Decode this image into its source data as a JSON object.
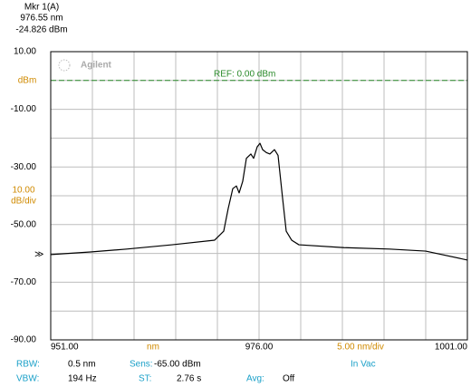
{
  "marker": {
    "name": "Mkr 1(A)",
    "x_label": "976.55 nm",
    "y_label": "-24.826 dBm"
  },
  "chart_data": {
    "type": "line",
    "brand": "Agilent",
    "y_unit": "dBm",
    "y_scale": [
      "10.00",
      "dB/div"
    ],
    "x_unit": "nm",
    "x_scale": "5.00 nm/div",
    "ref_label": "REF: 0.00 dBm",
    "ref_level": 0,
    "ref_color": "#2a8a2a",
    "x": [
      951,
      955.78,
      960.13,
      965.57,
      970.67,
      971.76,
      972.3,
      972.85,
      973.28,
      973.61,
      974.04,
      974.48,
      975.02,
      975.35,
      975.78,
      976.11,
      976.43,
      976.87,
      977.3,
      977.85,
      978.28,
      978.83,
      979.26,
      979.91,
      980.78,
      986.22,
      991.65,
      996,
      1001
    ],
    "series": [
      {
        "color": "#000000",
        "values": [
          -60.4,
          -59.5,
          -58.5,
          -57,
          -55.4,
          -52.3,
          -44.4,
          -37.5,
          -36.6,
          -39,
          -35,
          -27,
          -25.5,
          -27,
          -23,
          -21.8,
          -24,
          -25,
          -25.5,
          -24,
          -26,
          -41,
          -52.3,
          -55.4,
          -57,
          -58,
          -58.5,
          -59.2,
          -62.3
        ]
      }
    ],
    "xlim": [
      951,
      1001
    ],
    "xticks": [
      {
        "value": 951,
        "label": "951.00"
      },
      {
        "value": 976,
        "label": "976.00"
      },
      {
        "value": 1001,
        "label": "1001.00"
      }
    ],
    "xminor": [
      956,
      961,
      966,
      971,
      981,
      986,
      991,
      996
    ],
    "ylim": [
      -90,
      10
    ],
    "yticks": [
      {
        "value": 10,
        "label": "10.00"
      },
      {
        "value": -10,
        "label": "-10.00"
      },
      {
        "value": -30,
        "label": "-30.00"
      },
      {
        "value": -50,
        "label": "-50.00"
      },
      {
        "value": -70,
        "label": "-70.00"
      },
      {
        "value": -90,
        "label": "-90.00"
      }
    ],
    "yminor": [
      0,
      -20,
      -40,
      -60,
      -80
    ],
    "grid": true
  },
  "status": {
    "row1": [
      "RBW:",
      "0.5 nm",
      "Sens:",
      "-65.00 dBm",
      "In Vac"
    ],
    "row2": [
      "VBW:",
      "194 Hz",
      "ST:",
      "2.76 s",
      "Avg:",
      "Off"
    ]
  }
}
